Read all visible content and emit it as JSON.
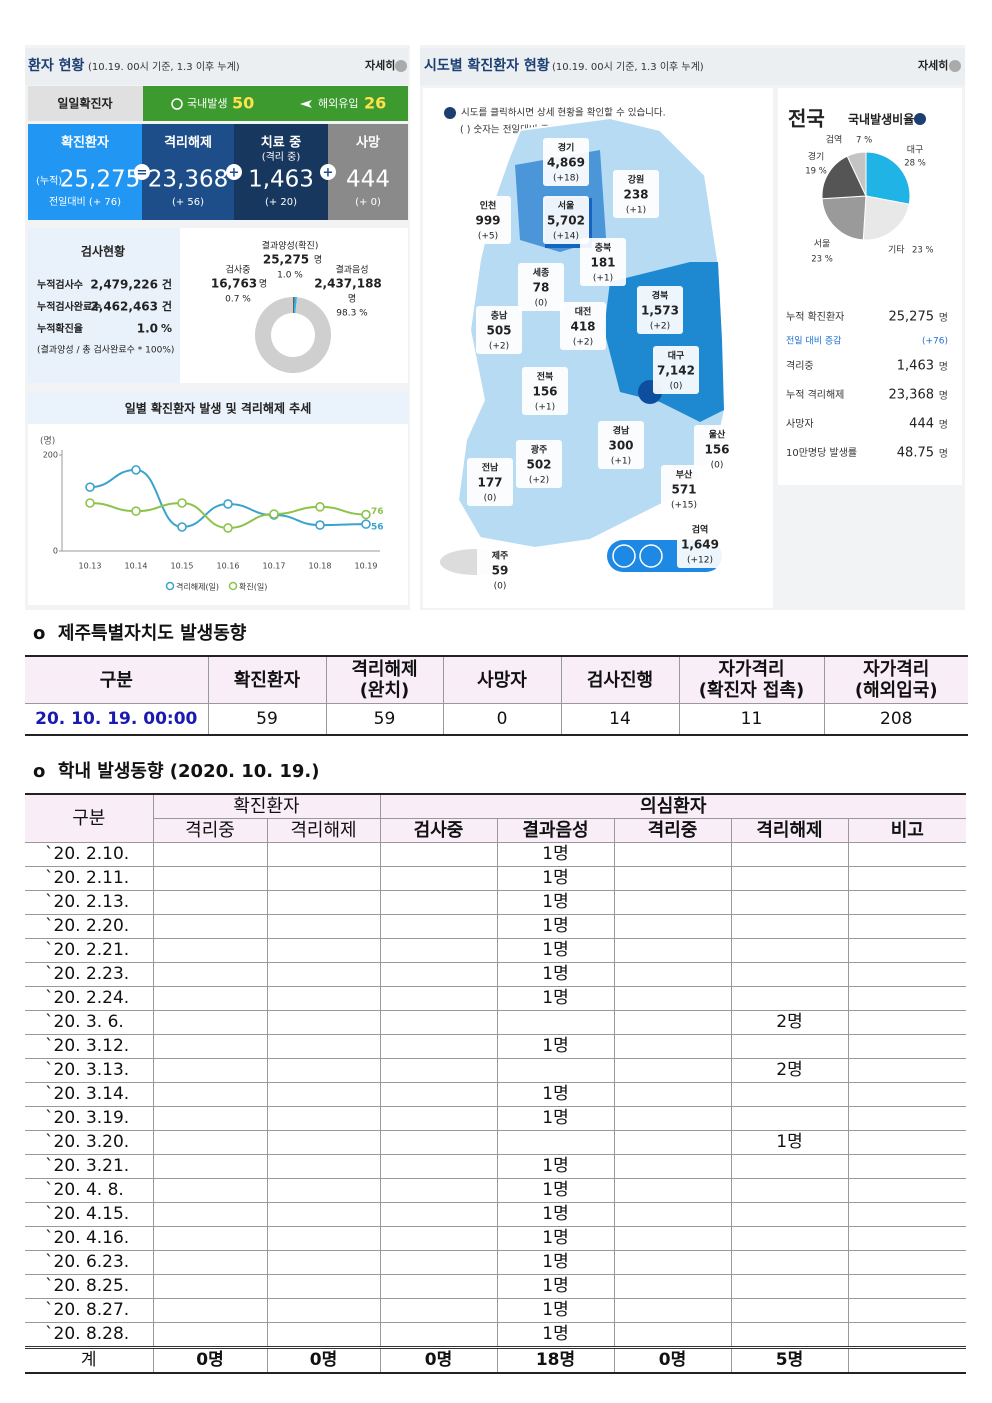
{
  "dashboard": {
    "patients": {
      "title": "환자 현황",
      "note": "(10.19. 00시 기준, 1.3 이후 누계)",
      "more": "자세히",
      "daily": {
        "label": "일일확진자",
        "domestic_label": "국내발생",
        "domestic": "50",
        "overseas_label": "해외유입",
        "overseas": "26"
      },
      "cards": [
        {
          "title": "확진환자",
          "prefix": "(누적)",
          "value": "25,275",
          "sub": "전일대비 (+ 76)"
        },
        {
          "title": "격리해제",
          "value": "23,368",
          "sub": "(+ 56)"
        },
        {
          "title": "치료 중",
          "title2": "(격리 중)",
          "value": "1,463",
          "sub": "(+ 20)"
        },
        {
          "title": "사망",
          "value": "444",
          "sub": "(+ 0)"
        }
      ],
      "operators": [
        "=",
        "+",
        "+"
      ]
    },
    "tests": {
      "title": "검사현황",
      "rows": [
        {
          "label": "누적검사수",
          "value": "2,479,226",
          "unit": "건"
        },
        {
          "label": "누적검사완료수",
          "value": "2,462,463",
          "unit": "건"
        },
        {
          "label": "누적확진율",
          "value": "1.0",
          "unit": "%"
        }
      ],
      "note": "(결과양성 / 총 검사완료수 * 100%)",
      "breakdown": [
        {
          "label": "검사중",
          "count": "16,763",
          "unit": "명",
          "pct": 0.7,
          "pct_label": "0.7 %",
          "color": "#5f5f5f"
        },
        {
          "label": "결과양성(확진)",
          "count": "25,275",
          "unit": "명",
          "pct": 1.0,
          "pct_label": "1.0 %",
          "color": "#29b6e8"
        },
        {
          "label": "결과음성",
          "count": "2,437,188",
          "unit": "명",
          "pct": 98.3,
          "pct_label": "98.3 %",
          "color": "#cfcfcf"
        }
      ]
    },
    "map": {
      "title": "시도별 확진환자 현황",
      "note": "(10.19. 00시 기준, 1.3 이후 누계)",
      "more": "자세히",
      "hint": "시도를 클릭하시면 상세 현황을 확인할 수 있습니다.",
      "hint2": "( ) 숫자는 전일대비 증감수치",
      "regions": [
        {
          "name": "경기",
          "value": "4,869",
          "change": "(+18)"
        },
        {
          "name": "강원",
          "value": "238",
          "change": "(+1)"
        },
        {
          "name": "인천",
          "value": "999",
          "change": "(+5)"
        },
        {
          "name": "서울",
          "value": "5,702",
          "change": "(+14)"
        },
        {
          "name": "충북",
          "value": "181",
          "change": "(+1)"
        },
        {
          "name": "세종",
          "value": "78",
          "change": "(0)"
        },
        {
          "name": "충남",
          "value": "505",
          "change": "(+2)"
        },
        {
          "name": "대전",
          "value": "418",
          "change": "(+2)"
        },
        {
          "name": "경북",
          "value": "1,573",
          "change": "(+2)"
        },
        {
          "name": "대구",
          "value": "7,142",
          "change": "(0)"
        },
        {
          "name": "전북",
          "value": "156",
          "change": "(+1)"
        },
        {
          "name": "울산",
          "value": "156",
          "change": "(0)"
        },
        {
          "name": "경남",
          "value": "300",
          "change": "(+1)"
        },
        {
          "name": "광주",
          "value": "502",
          "change": "(+2)"
        },
        {
          "name": "전남",
          "value": "177",
          "change": "(0)"
        },
        {
          "name": "부산",
          "value": "571",
          "change": "(+15)"
        },
        {
          "name": "검역",
          "value": "1,649",
          "change": "(+12)"
        },
        {
          "name": "제주",
          "value": "59",
          "change": "(0)"
        }
      ]
    },
    "national": {
      "title": "전국",
      "share_title": "국내발생비율",
      "slices": [
        {
          "name": "대구",
          "value": 28,
          "label": "28 %",
          "color": "#1fb3e6"
        },
        {
          "name": "기타",
          "value": 23,
          "label": "23 %",
          "color": "#e8e8e8"
        },
        {
          "name": "서울",
          "value": 23,
          "label": "23 %",
          "color": "#9a9a9a"
        },
        {
          "name": "경기",
          "value": 19,
          "label": "19 %",
          "color": "#555555"
        },
        {
          "name": "검역",
          "value": 7,
          "label": "7 %",
          "color": "#c4c4c4"
        }
      ],
      "rows": [
        {
          "label": "누적 확진환자",
          "value": "25,275",
          "unit": "명"
        },
        {
          "label": "전일 대비 증감",
          "value": "(+76)"
        },
        {
          "label": "격리중",
          "value": "1,463",
          "unit": "명"
        },
        {
          "label": "누적 격리해제",
          "value": "23,368",
          "unit": "명"
        },
        {
          "label": "사망자",
          "value": "444",
          "unit": "명"
        },
        {
          "label": "10만명당 발생률",
          "value": "48.75",
          "unit": "명"
        }
      ]
    }
  },
  "chart_data": {
    "type": "line",
    "title": "일별 확진환자 발생 및 격리해제 추세",
    "y_label": "(명)",
    "categories": [
      "10.13",
      "10.14",
      "10.15",
      "10.16",
      "10.17",
      "10.18",
      "10.19"
    ],
    "series": [
      {
        "name": "격리해제(일)",
        "color": "#3ba3cc",
        "values": [
          133,
          169,
          50,
          98,
          75,
          54,
          56
        ]
      },
      {
        "name": "확진(일)",
        "color": "#8cc34b",
        "values": [
          100,
          83,
          100,
          48,
          77,
          92,
          76
        ]
      }
    ],
    "ylim": [
      0,
      200
    ],
    "yticks": [
      0,
      200
    ],
    "grid": false
  },
  "sections": [
    {
      "title": "o  제주특별자치도 발생동향",
      "table": {
        "header": [
          "구분",
          "확진환자",
          "격리해제\n(완치)",
          "사망자",
          "검사진행",
          "자가격리\n(확진자 접촉)",
          "자가격리\n(해외입국)"
        ],
        "rows": [
          [
            "20. 10. 19. 00:00",
            "59",
            "59",
            "0",
            "14",
            "11",
            "208"
          ]
        ]
      }
    },
    {
      "title": "o  학내 발생동향 (2020. 10. 19.)",
      "table": {
        "header_top": [
          "구분",
          "확진환자",
          "의심환자"
        ],
        "header": [
          "격리중",
          "격리해제",
          "검사중",
          "결과음성",
          "격리중",
          "격리해제",
          "비고"
        ],
        "rows": [
          [
            "`20.  2.10.",
            null,
            null,
            null,
            "1명",
            null,
            null,
            null
          ],
          [
            "`20.  2.11.",
            null,
            null,
            null,
            "1명",
            null,
            null,
            null
          ],
          [
            "`20.  2.13.",
            null,
            null,
            null,
            "1명",
            null,
            null,
            null
          ],
          [
            "`20.  2.20.",
            null,
            null,
            null,
            "1명",
            null,
            null,
            null
          ],
          [
            "`20.  2.21.",
            null,
            null,
            null,
            "1명",
            null,
            null,
            null
          ],
          [
            "`20.  2.23.",
            null,
            null,
            null,
            "1명",
            null,
            null,
            null
          ],
          [
            "`20.  2.24.",
            null,
            null,
            null,
            "1명",
            null,
            null,
            null
          ],
          [
            "`20.  3.  6.",
            null,
            null,
            null,
            null,
            null,
            "2명",
            null
          ],
          [
            "`20.  3.12.",
            null,
            null,
            null,
            "1명",
            null,
            null,
            null
          ],
          [
            "`20.  3.13.",
            null,
            null,
            null,
            null,
            null,
            "2명",
            null
          ],
          [
            "`20.  3.14.",
            null,
            null,
            null,
            "1명",
            null,
            null,
            null
          ],
          [
            "`20.  3.19.",
            null,
            null,
            null,
            "1명",
            null,
            null,
            null
          ],
          [
            "`20.  3.20.",
            null,
            null,
            null,
            null,
            null,
            "1명",
            null
          ],
          [
            "`20.  3.21.",
            null,
            null,
            null,
            "1명",
            null,
            null,
            null
          ],
          [
            "`20.  4.  8.",
            null,
            null,
            null,
            "1명",
            null,
            null,
            null
          ],
          [
            "`20.  4.15.",
            null,
            null,
            null,
            "1명",
            null,
            null,
            null
          ],
          [
            "`20.  4.16.",
            null,
            null,
            null,
            "1명",
            null,
            null,
            null
          ],
          [
            "`20.  6.23.",
            null,
            null,
            null,
            "1명",
            null,
            null,
            null
          ],
          [
            "`20.  8.25.",
            null,
            null,
            null,
            "1명",
            null,
            null,
            null
          ],
          [
            "`20.  8.27.",
            null,
            null,
            null,
            "1명",
            null,
            null,
            null
          ],
          [
            "`20.  8.28.",
            null,
            null,
            null,
            "1명",
            null,
            null,
            null
          ]
        ],
        "total": [
          "계",
          "0명",
          "0명",
          "0명",
          "18명",
          "0명",
          "5명",
          null
        ]
      }
    }
  ]
}
